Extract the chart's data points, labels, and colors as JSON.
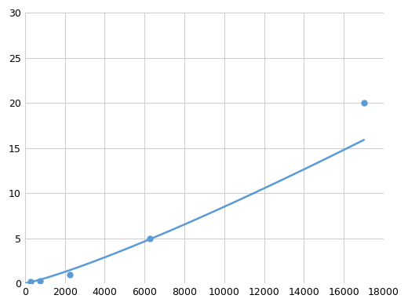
{
  "x_points": [
    300,
    750,
    2250,
    6250,
    17000
  ],
  "y_points": [
    0.2,
    0.3,
    1.0,
    5.0,
    20.0
  ],
  "line_color": "#5b9bd5",
  "marker_color": "#5b9bd5",
  "marker_size": 6,
  "line_width": 1.8,
  "xlim": [
    0,
    18000
  ],
  "ylim": [
    0,
    30
  ],
  "xticks": [
    0,
    2000,
    4000,
    6000,
    8000,
    10000,
    12000,
    14000,
    16000,
    18000
  ],
  "yticks": [
    0,
    5,
    10,
    15,
    20,
    25,
    30
  ],
  "grid_color": "#cccccc",
  "background_color": "#ffffff",
  "tick_fontsize": 9,
  "figure_width": 5.2,
  "figure_height": 3.9
}
